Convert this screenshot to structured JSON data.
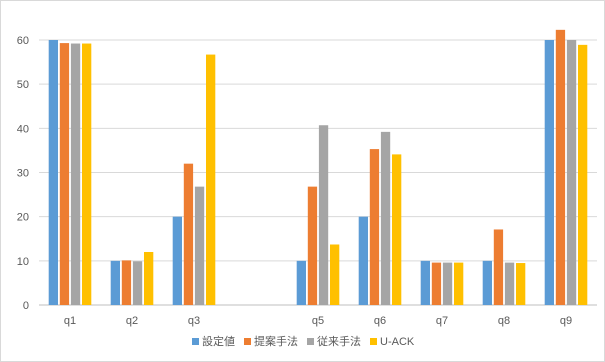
{
  "chart_data": {
    "type": "bar",
    "categories": [
      "q1",
      "q2",
      "q3",
      "",
      "q5",
      "q6",
      "q7",
      "q8",
      "q9"
    ],
    "series": [
      {
        "name": "設定値",
        "color": "#5b9bd5",
        "values": [
          60,
          10,
          20,
          null,
          10,
          20,
          10,
          10,
          60
        ]
      },
      {
        "name": "提案手法",
        "color": "#ed7d31",
        "values": [
          59.3,
          10.1,
          32,
          null,
          26.8,
          35.3,
          9.6,
          17.1,
          62.3
        ]
      },
      {
        "name": "従来手法",
        "color": "#a5a5a5",
        "values": [
          59.2,
          9.9,
          26.8,
          null,
          40.7,
          39.2,
          9.6,
          9.6,
          60
        ]
      },
      {
        "name": "U-ACK",
        "color": "#ffc000",
        "values": [
          59.2,
          12,
          56.7,
          null,
          13.7,
          34.1,
          9.6,
          9.5,
          58.9
        ]
      }
    ],
    "ylim": [
      0,
      60
    ],
    "yticks": [
      0,
      10,
      20,
      30,
      40,
      50,
      60
    ],
    "grid": true,
    "legend_position": "bottom"
  }
}
